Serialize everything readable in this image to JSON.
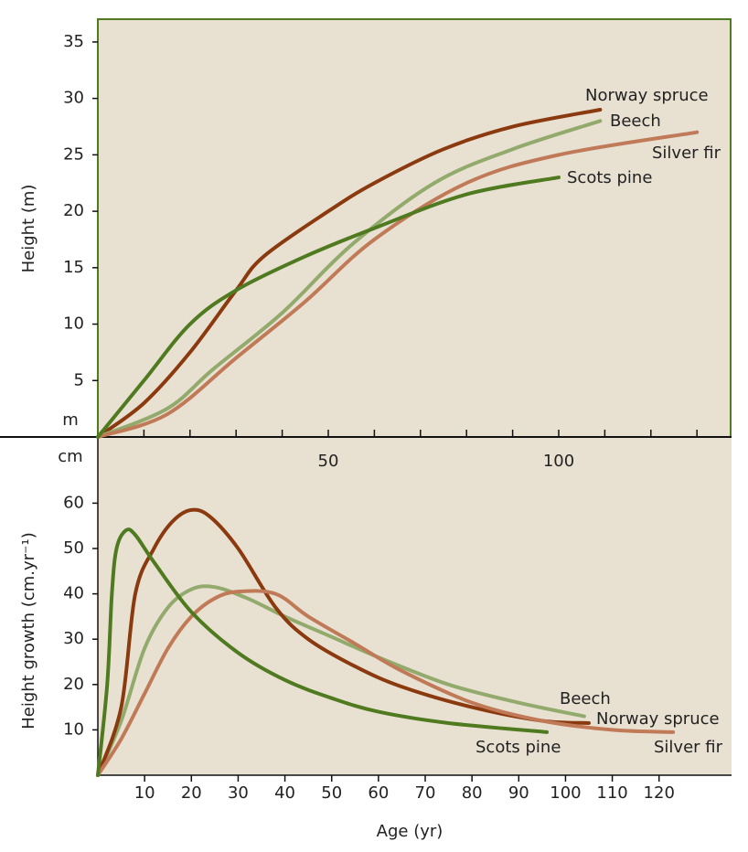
{
  "chart_data": [
    {
      "type": "line",
      "ylabel": "Height (m)",
      "yunit": "m",
      "xlim": [
        0,
        137.5
      ],
      "xticks": [
        50,
        100
      ],
      "xminorticks": [
        10,
        20,
        30,
        40,
        50,
        60,
        70,
        80,
        90,
        100,
        110,
        120,
        130
      ],
      "ylim": [
        0,
        37.1
      ],
      "yticks": [
        5,
        10,
        15,
        20,
        25,
        30,
        35
      ],
      "series": [
        {
          "name": "Norway spruce",
          "color": "#8b3a0f",
          "x": [
            0,
            10,
            20,
            30,
            36,
            50,
            60,
            75,
            90,
            109
          ],
          "values": [
            0,
            3,
            7.5,
            13,
            16,
            20,
            22.5,
            25.5,
            27.5,
            29
          ]
        },
        {
          "name": "Beech",
          "color": "#92aa6c",
          "x": [
            0,
            15,
            25,
            40,
            55,
            73,
            90,
            109
          ],
          "values": [
            0,
            2.5,
            6,
            11,
            17,
            22.5,
            25.5,
            28
          ]
        },
        {
          "name": "Silver fir",
          "color": "#c07a58",
          "x": [
            0,
            15,
            30,
            45,
            60,
            80,
            100,
            130
          ],
          "values": [
            0,
            2,
            7,
            12,
            17.5,
            22.5,
            25,
            27
          ]
        },
        {
          "name": "Scots pine",
          "color": "#4f7a1f",
          "x": [
            0,
            10,
            20,
            30,
            45,
            60,
            80,
            100
          ],
          "values": [
            0,
            5,
            10,
            13,
            16,
            18.5,
            21.5,
            23
          ]
        }
      ]
    },
    {
      "type": "line",
      "ylabel": "Height growth (cm.yr⁻¹)",
      "yunit": "cm",
      "xlabel": "Age (yr)",
      "xlim": [
        0,
        135.5
      ],
      "xticks": [
        10,
        20,
        30,
        40,
        50,
        60,
        70,
        80,
        90,
        100,
        110,
        120
      ],
      "ylim": [
        0,
        74.6
      ],
      "yticks": [
        10,
        20,
        30,
        40,
        50,
        60
      ],
      "series": [
        {
          "name": "Beech",
          "color": "#92aa6c",
          "x": [
            0,
            5,
            10,
            15,
            20,
            25,
            32,
            40,
            50,
            60,
            75,
            90,
            104
          ],
          "values": [
            0,
            12,
            28,
            37,
            41,
            41.5,
            39,
            35,
            30.5,
            26,
            20,
            16,
            13
          ]
        },
        {
          "name": "Norway spruce",
          "color": "#8b3a0f",
          "x": [
            0,
            5,
            8,
            12,
            16,
            20,
            24,
            30,
            38,
            45,
            55,
            65,
            80,
            95,
            105
          ],
          "values": [
            0,
            15,
            40,
            50,
            56,
            58.5,
            57,
            50,
            37,
            30,
            24,
            19.5,
            15,
            12,
            11.5
          ]
        },
        {
          "name": "Silver fir",
          "color": "#c07a58",
          "x": [
            0,
            5,
            10,
            15,
            20,
            25,
            30,
            38,
            45,
            55,
            65,
            80,
            95,
            110,
            123
          ],
          "values": [
            0,
            8,
            18,
            28,
            35,
            39,
            40.5,
            40,
            35,
            29,
            23,
            16,
            12,
            10,
            9.5
          ]
        },
        {
          "name": "Scots pine",
          "color": "#4f7a1f",
          "x": [
            0,
            2,
            3,
            4,
            6,
            8,
            12,
            20,
            30,
            40,
            50,
            60,
            75,
            96
          ],
          "values": [
            0,
            20,
            40,
            50,
            54,
            53,
            47,
            36,
            27,
            21,
            17,
            14,
            11.5,
            9.5
          ]
        }
      ]
    }
  ]
}
